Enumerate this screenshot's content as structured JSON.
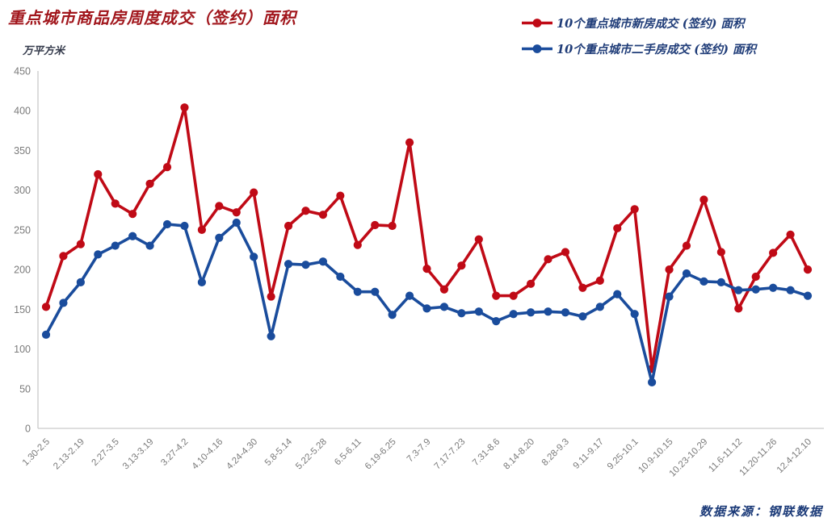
{
  "title": "重点城市商品房周度成交（签约）面积",
  "unit_label": "万平方米",
  "legend": [
    {
      "label": "10个重点城市新房成交 (签约) 面积",
      "color": "#c00a16"
    },
    {
      "label": "10个重点城市二手房成交 (签约) 面积",
      "color": "#1a4c9c"
    }
  ],
  "source_note": "数据来源：钢联数据",
  "chart_data": {
    "type": "line",
    "title": "重点城市商品房周度成交（签约）面积",
    "ylabel": "万平方米",
    "xlabel": "",
    "ylim": [
      0,
      450
    ],
    "yticks": [
      0,
      50,
      100,
      150,
      200,
      250,
      300,
      350,
      400,
      450
    ],
    "grid": false,
    "legend_position": "top-right",
    "x_tick_label_rotation": 45,
    "categories": [
      "1.30-2.5",
      "",
      "2.13-2.19",
      "",
      "2.27-3.5",
      "",
      "3.13-3.19",
      "",
      "3.27-4.2",
      "",
      "4.10-4.16",
      "",
      "4.24-4.30",
      "",
      "5.8-5.14",
      "",
      "5.22-5.28",
      "",
      "6.5-6.11",
      "",
      "6.19-6.25",
      "",
      "7.3-7.9",
      "",
      "7.17-7.23",
      "",
      "7.31-8.6",
      "",
      "8.14-8.20",
      "",
      "8.28-9.3",
      "",
      "9.11-9.17",
      "",
      "9.25-10.1",
      "",
      "10.9-10.15",
      "",
      "10.23-10.29",
      "",
      "11.6-11.12",
      "",
      "11.20-11.26",
      "",
      "12.4-12.10"
    ],
    "series": [
      {
        "name": "10个重点城市新房成交 (签约) 面积",
        "color": "#c00a16",
        "values": [
          153,
          217,
          232,
          320,
          283,
          270,
          308,
          329,
          404,
          250,
          280,
          272,
          297,
          166,
          255,
          274,
          269,
          293,
          231,
          256,
          255,
          360,
          201,
          175,
          205,
          238,
          167,
          167,
          182,
          213,
          222,
          177,
          186,
          252,
          276,
          75,
          200,
          230,
          288,
          222,
          151,
          191,
          221,
          244,
          200
        ]
      },
      {
        "name": "10个重点城市二手房成交 (签约) 面积",
        "color": "#1a4c9c",
        "values": [
          118,
          158,
          184,
          219,
          230,
          242,
          230,
          257,
          255,
          184,
          240,
          259,
          216,
          116,
          207,
          206,
          210,
          191,
          172,
          172,
          143,
          167,
          151,
          153,
          145,
          147,
          135,
          144,
          146,
          147,
          146,
          141,
          153,
          169,
          144,
          58,
          166,
          195,
          185,
          184,
          174,
          175,
          177,
          174,
          167
        ]
      }
    ]
  }
}
